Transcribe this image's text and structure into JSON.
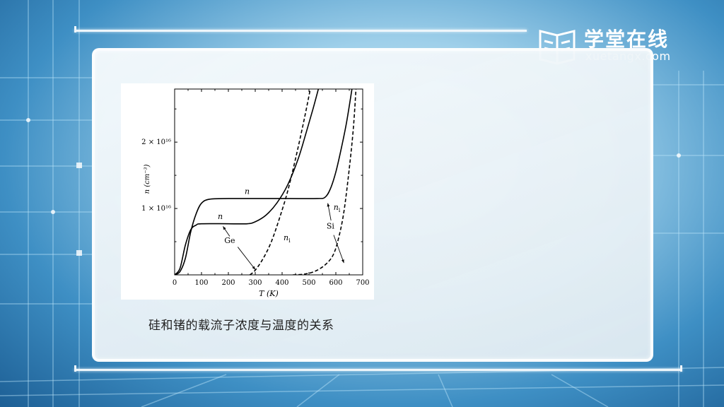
{
  "logo": {
    "cn": "学堂在线",
    "en": "xuetangx.com"
  },
  "caption": "硅和锗的载流子浓度与温度的关系",
  "chart_data": {
    "type": "line",
    "xlabel": "T (K)",
    "ylabel": "n (cm⁻³)",
    "xlim": [
      0,
      700
    ],
    "ylim": [
      0,
      2.8e+16
    ],
    "x_ticks": [
      "0",
      "100",
      "200",
      "300",
      "400",
      "500",
      "600",
      "700"
    ],
    "y_ticks": [
      {
        "value": 1e+16,
        "label": "1 × 10¹⁶"
      },
      {
        "value": 2e+16,
        "label": "2 × 10¹⁶"
      }
    ],
    "series": [
      {
        "name": "n",
        "material": "Ge",
        "style": "solid",
        "points": [
          [
            0,
            0
          ],
          [
            20,
            500000000000000.0
          ],
          [
            40,
            2500000000000000.0
          ],
          [
            60,
            6500000000000000.0
          ],
          [
            80,
            9200000000000000.0
          ],
          [
            100,
            1.08e+16
          ],
          [
            130,
            1.14e+16
          ],
          [
            200,
            1.15e+16
          ],
          [
            300,
            1.15e+16
          ],
          [
            420,
            1.15e+16
          ],
          [
            530,
            1.15e+16
          ],
          [
            560,
            1.17e+16
          ],
          [
            580,
            1.3e+16
          ],
          [
            600,
            1.55e+16
          ],
          [
            620,
            1.9e+16
          ],
          [
            640,
            2.3e+16
          ],
          [
            660,
            2.8e+16
          ]
        ]
      },
      {
        "name": "n",
        "material": "Si",
        "style": "solid",
        "points": [
          [
            0,
            0
          ],
          [
            20,
            1000000000000000.0
          ],
          [
            40,
            4500000000000000.0
          ],
          [
            60,
            6800000000000000.0
          ],
          [
            80,
            7500000000000000.0
          ],
          [
            100,
            7700000000000000.0
          ],
          [
            200,
            7700000000000000.0
          ],
          [
            270,
            7700000000000000.0
          ],
          [
            300,
            8000000000000000.0
          ],
          [
            340,
            9000000000000000.0
          ],
          [
            380,
            1.08e+16
          ],
          [
            420,
            1.35e+16
          ],
          [
            460,
            1.75e+16
          ],
          [
            490,
            2.15e+16
          ],
          [
            515,
            2.5e+16
          ],
          [
            535,
            2.8e+16
          ]
        ]
      },
      {
        "name": "n_i",
        "material": "Ge",
        "style": "dashed",
        "points": [
          [
            280,
            0
          ],
          [
            300,
            700000000000000.0
          ],
          [
            330,
            2500000000000000.0
          ],
          [
            360,
            5000000000000000.0
          ],
          [
            390,
            8500000000000000.0
          ],
          [
            420,
            1.25e+16
          ],
          [
            450,
            1.75e+16
          ],
          [
            480,
            2.3e+16
          ],
          [
            505,
            2.8e+16
          ]
        ]
      },
      {
        "name": "n_i",
        "material": "Si",
        "style": "dashed",
        "points": [
          [
            440,
            0
          ],
          [
            480,
            100000000000000.0
          ],
          [
            520,
            500000000000000.0
          ],
          [
            560,
            1500000000000000.0
          ],
          [
            590,
            3000000000000000.0
          ],
          [
            610,
            5500000000000000.0
          ],
          [
            630,
            9500000000000000.0
          ],
          [
            650,
            1.6e+16
          ],
          [
            665,
            2.2e+16
          ],
          [
            675,
            2.8e+16
          ]
        ]
      }
    ],
    "annotations": [
      {
        "text": "n",
        "x": 270,
        "y": 1.22e+16
      },
      {
        "text": "n",
        "x": 170,
        "y": 8400000000000000.0
      },
      {
        "text": "Ge",
        "x": 205,
        "y": 4800000000000000.0
      },
      {
        "text": "n_i",
        "x": 418,
        "y": 5200000000000000.0
      },
      {
        "text": "Si",
        "x": 580,
        "y": 7000000000000000.0
      },
      {
        "text": "n_i",
        "x": 604,
        "y": 9800000000000000.0
      }
    ]
  }
}
